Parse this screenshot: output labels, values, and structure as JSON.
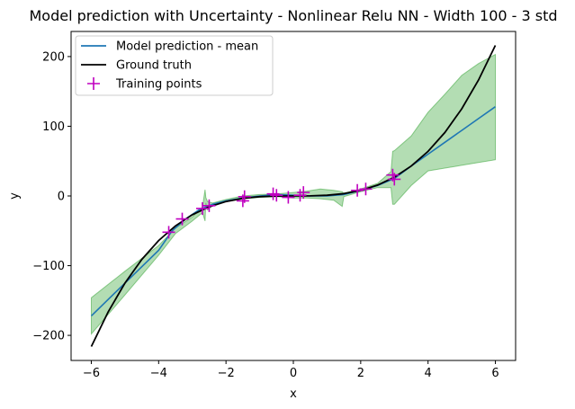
{
  "chart_data": {
    "type": "line",
    "title": "Model prediction with Uncertainty - Nonlinear Relu NN - Width 100 - 3 std",
    "xlabel": "x",
    "ylabel": "y",
    "xlim": [
      -6.6,
      6.6
    ],
    "ylim": [
      -236,
      236
    ],
    "xticks": [
      -6,
      -4,
      -2,
      0,
      2,
      4,
      6
    ],
    "xtick_labels": [
      "−6",
      "−4",
      "−2",
      "0",
      "2",
      "4",
      "6"
    ],
    "yticks": [
      -200,
      -100,
      0,
      100,
      200
    ],
    "ytick_labels": [
      "−200",
      "−100",
      "0",
      "100",
      "200"
    ],
    "grid": false,
    "legend_position": "top-left",
    "colors": {
      "mean": "#1f77b4",
      "truth": "#000000",
      "points": "#c000c0",
      "band": "#2ca02c"
    },
    "series": [
      {
        "name": "Model prediction - mean",
        "kind": "line",
        "x": [
          -6,
          -5,
          -4,
          -3.6,
          -3.2,
          -2.8,
          -2.4,
          -2,
          -1.5,
          -1,
          -0.5,
          0,
          0.5,
          1,
          1.5,
          2,
          2.5,
          3,
          3.5,
          4,
          4.5,
          5,
          5.5,
          6
        ],
        "y": [
          -172,
          -125,
          -78,
          -50,
          -33,
          -20,
          -12,
          -7,
          -3,
          0,
          2,
          1,
          0,
          0,
          2,
          8,
          15,
          25,
          43,
          60,
          77,
          94,
          111,
          128
        ]
      },
      {
        "name": "Ground truth",
        "kind": "line",
        "x": [
          -6,
          -5.5,
          -5,
          -4.5,
          -4,
          -3.5,
          -3,
          -2.5,
          -2,
          -1.5,
          -1,
          -0.5,
          0,
          0.5,
          1,
          1.5,
          2,
          2.5,
          3,
          3.5,
          4,
          4.5,
          5,
          5.5,
          6
        ],
        "y": [
          -216,
          -166.4,
          -125,
          -91.1,
          -64,
          -42.9,
          -27,
          -15.6,
          -8,
          -3.4,
          -1,
          -0.1,
          0,
          0.1,
          1,
          3.4,
          8,
          15.6,
          27,
          42.9,
          64,
          91.1,
          125,
          166.4,
          216
        ]
      },
      {
        "name": "Training points",
        "kind": "scatter",
        "x": [
          -3.7,
          -3.3,
          -2.7,
          -2.5,
          -1.5,
          -1.45,
          -0.6,
          -0.5,
          -0.15,
          0.2,
          0.3,
          1.9,
          2.15,
          2.95,
          3.0
        ],
        "y": [
          -52,
          -33,
          -18,
          -14,
          -7,
          -1,
          3,
          1,
          -2,
          1,
          5,
          8,
          10,
          30,
          24
        ]
      },
      {
        "name": "",
        "kind": "band",
        "x": [
          -6,
          -5,
          -4,
          -3.5,
          -3,
          -2.7,
          -2.62,
          -2.6,
          -2.55,
          -2.4,
          -2,
          -1.6,
          -1.5,
          -1,
          -0.5,
          0,
          0.4,
          0.8,
          1.2,
          1.45,
          1.5,
          2,
          2.5,
          2.9,
          2.95,
          3.0,
          3.5,
          4,
          4.5,
          5,
          5.5,
          6
        ],
        "lower": [
          -198,
          -142,
          -85,
          -54,
          -36,
          -24,
          -36,
          -10,
          -20,
          -14,
          -8,
          -5,
          -4,
          -2,
          -1,
          -3,
          -3,
          -4,
          -6,
          -15,
          -1,
          6,
          12,
          12,
          -12,
          -12,
          15,
          36,
          40,
          44,
          48,
          52
        ],
        "upper": [
          -146,
          -108,
          -71,
          -46,
          -30,
          -16,
          9,
          -2,
          -8,
          -10,
          -5,
          -1,
          0,
          2,
          3,
          5,
          7,
          10,
          8,
          6,
          4,
          10,
          18,
          35,
          64,
          65,
          86,
          120,
          146,
          173,
          190,
          203
        ]
      }
    ]
  }
}
